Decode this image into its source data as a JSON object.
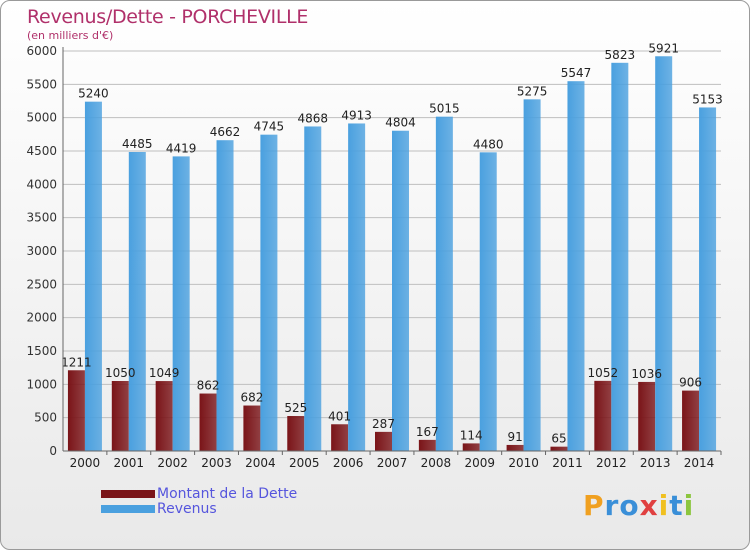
{
  "title": "Revenus/Dette - PORCHEVILLE",
  "subtitle": "(en milliers d'€)",
  "colors": {
    "dette": "#7a1418",
    "revenus": "#4aa0df",
    "title": "#b0306a",
    "legend_text": "#5555dd"
  },
  "chart_data": {
    "type": "bar",
    "categories": [
      "2000",
      "2001",
      "2002",
      "2003",
      "2004",
      "2005",
      "2006",
      "2007",
      "2008",
      "2009",
      "2010",
      "2011",
      "2012",
      "2013",
      "2014"
    ],
    "series": [
      {
        "name": "Montant de la Dette",
        "values": [
          1211,
          1050,
          1049,
          862,
          682,
          525,
          401,
          287,
          167,
          114,
          91,
          65,
          1052,
          1036,
          906
        ],
        "labels": [
          "1211",
          "1050",
          "1049",
          "862",
          "682",
          "525",
          "401",
          "287",
          "167",
          "114",
          "91",
          "65",
          "1052",
          "1036",
          "906"
        ],
        "color": "#7a1418"
      },
      {
        "name": "Revenus",
        "values": [
          5240,
          4485,
          4419,
          4662,
          4745,
          4868,
          4913,
          4804,
          5015,
          4480,
          5275,
          5547,
          5823,
          5921,
          5153
        ],
        "labels": [
          "5240",
          "4485",
          "4419",
          "4662",
          "4745",
          "4868",
          "4913",
          "4804",
          "5015",
          "4480",
          "5275",
          "5547",
          "5823",
          "5921",
          "5153"
        ],
        "color": "#4aa0df"
      }
    ],
    "yticks": [
      "0",
      "500",
      "1000",
      "1500",
      "2000",
      "2500",
      "3000",
      "3500",
      "4000",
      "4500",
      "5000",
      "5500",
      "6000"
    ],
    "ylim": [
      0,
      6000
    ],
    "grid": true,
    "legend_position": "bottom-left"
  },
  "legend": [
    {
      "label": "Montant de la Dette"
    },
    {
      "label": "Revenus"
    }
  ],
  "logo": {
    "letters": [
      "P",
      "r",
      "o",
      "x",
      "i",
      "t",
      "i"
    ],
    "colors": [
      "#f0a020",
      "#3a8fd8",
      "#3a8fd8",
      "#e04040",
      "#f0c020",
      "#3a8fd8",
      "#8cc63e"
    ]
  }
}
